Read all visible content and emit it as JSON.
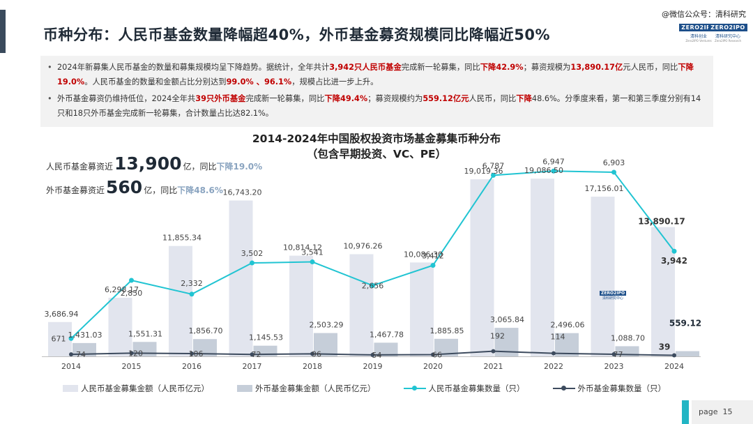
{
  "header": {
    "title": "币种分布：人民币基金数量降幅超40%，外币基金募资规模同比降幅近50%",
    "wechat": "@微信公众号：清科研究",
    "logo1_brand": "ZERO2IPO",
    "logo1_name": "清科创业",
    "logo1_sub": "Zero2IPO Ventures",
    "logo2_brand": "ZERO2IPO",
    "logo2_name": "清科研究中心",
    "logo2_sub": "Zero2IPO Research"
  },
  "bullets": {
    "b1": {
      "t1": "2024年新募集人民币基金的数量和募集规模均呈下降趋势。据统计，全年共计",
      "h1": "3,942只人民币基金",
      "t2": "完成新一轮募集，同比",
      "h2": "下降42.9%",
      "t3": "；募资规模为",
      "h3": "13,890.17亿",
      "t4": "元人民币，同比",
      "h4": "下降19.0%",
      "t5": "。人民币基金的数量和金额占比分别达到",
      "h5": "99.0% 、96.1%",
      "t6": "，规模占比进一步上升。"
    },
    "b2": {
      "t1": "外币基金募资仍维持低位，2024全年共",
      "h1": "39只外币基金",
      "t2": "完成新一轮募集，同比",
      "h2": "下降49.4%",
      "t3": "；募资规模约为",
      "h3": "559.12亿元",
      "t4": "人民币，同比",
      "h4": "下降",
      "t5": "48.6%。分季度来看，第一和第三季度分别有14只和18只外币基金完成新一轮募集，合计数量占比达82.1%。"
    }
  },
  "callouts": {
    "rmb": {
      "pre": "人民币基金募资近",
      "big": "13,900",
      "mid": "亿，同比",
      "down": "下降19.0%"
    },
    "fx": {
      "pre": "外币基金募资近",
      "big": "560",
      "mid": "亿，同比",
      "down": "下降48.6%"
    }
  },
  "chart_data": {
    "type": "bar+line",
    "title": "2014-2024年中国股权投资市场基金募集币种分布",
    "subtitle": "（包含早期投资、VC、PE）",
    "categories": [
      "2014",
      "2015",
      "2016",
      "2017",
      "2018",
      "2019",
      "2020",
      "2021",
      "2022",
      "2023",
      "2024"
    ],
    "series": [
      {
        "name": "人民币基金募集金额（人民币亿元）",
        "type": "bar",
        "axis": "left",
        "color": "#e2e5ee",
        "values": [
          3686.94,
          6298.17,
          11855.34,
          16743.2,
          10814.12,
          10976.26,
          10086.3,
          19019.36,
          19086.5,
          17156.01,
          13890.17
        ]
      },
      {
        "name": "外币基金募集金额（人民币亿元）",
        "type": "bar",
        "axis": "left",
        "color": "#c6ced9",
        "values": [
          1431.03,
          1551.31,
          1856.7,
          1145.53,
          2503.29,
          1467.78,
          1885.85,
          3065.84,
          2496.06,
          1088.7,
          559.12
        ]
      },
      {
        "name": "人民币基金募集数量（只）",
        "type": "line",
        "axis": "right",
        "color": "#21c4d2",
        "values": [
          671,
          2850,
          2332,
          3502,
          3541,
          2656,
          3412,
          6787,
          6947,
          6903,
          3942
        ]
      },
      {
        "name": "外币基金募集数量（只）",
        "type": "line",
        "axis": "right",
        "color": "#3d4b5e",
        "values": [
          74,
          120,
          106,
          72,
          96,
          54,
          66,
          192,
          114,
          77,
          39
        ]
      }
    ],
    "left_ylim": [
      0,
      20000
    ],
    "right_ylim": [
      0,
      8000
    ],
    "grid": false,
    "legend": "bottom"
  },
  "footer": {
    "page_label": "page",
    "page_number": "15"
  }
}
